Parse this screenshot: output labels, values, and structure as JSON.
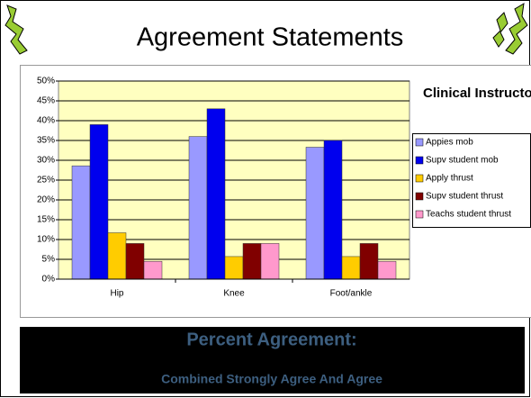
{
  "chart_data": {
    "type": "bar",
    "title": "Agreement Statements",
    "legend_title": "Clinical Instructor",
    "annotations": [
      "Percent Agreement:",
      "Combined Strongly Agree And Agree"
    ],
    "categories": [
      "Hip",
      "Knee",
      "Foot/ankle"
    ],
    "series": [
      {
        "name": "Appies mob",
        "color": "#9999ff",
        "values": [
          28.6,
          36,
          33.3
        ]
      },
      {
        "name": "Supv student mob",
        "color": "#0000ee",
        "values": [
          39,
          43,
          35
        ]
      },
      {
        "name": "Apply thrust",
        "color": "#ffcc00",
        "values": [
          11.7,
          5.7,
          5.7
        ]
      },
      {
        "name": "Supv student thrust",
        "color": "#800000",
        "values": [
          9,
          9,
          9
        ]
      },
      {
        "name": "Teachs student thrust",
        "color": "#ff99cc",
        "values": [
          4.5,
          9,
          4.5
        ]
      }
    ],
    "ylim": [
      0,
      50
    ],
    "yticks": [
      {
        "value": 0,
        "label": "0%"
      },
      {
        "value": 5,
        "label": "5%"
      },
      {
        "value": 10,
        "label": "10%"
      },
      {
        "value": 15,
        "label": "15%"
      },
      {
        "value": 20,
        "label": "20%"
      },
      {
        "value": 25,
        "label": "25%"
      },
      {
        "value": 30,
        "label": "30%"
      },
      {
        "value": 35,
        "label": "35%"
      },
      {
        "value": 40,
        "label": "40%"
      },
      {
        "value": 45,
        "label": "45%"
      },
      {
        "value": 50,
        "label": "50%"
      }
    ],
    "grid": true,
    "legend": "right"
  }
}
